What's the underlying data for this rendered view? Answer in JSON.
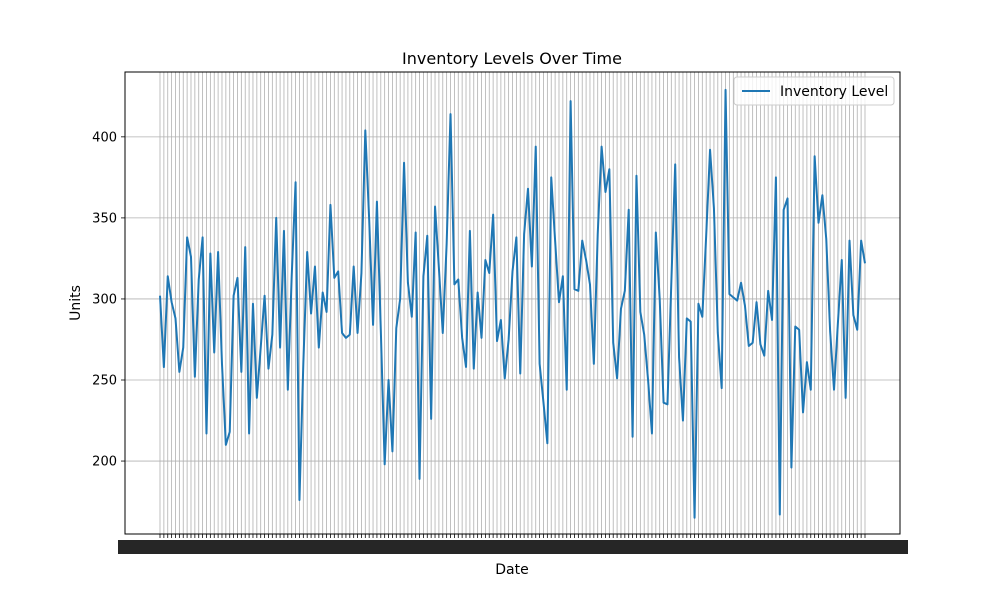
{
  "chart_data": {
    "type": "line",
    "title": "Inventory Levels Over Time",
    "xlabel": "Date",
    "ylabel": "Units",
    "ylim": [
      155,
      440
    ],
    "yticks": [
      200,
      250,
      300,
      350,
      400
    ],
    "grid": true,
    "legend_position": "top-right",
    "x_tick_labels_unreadable": true,
    "series": [
      {
        "name": "Inventory Level",
        "color": "#1f77b4",
        "values": [
          302,
          258,
          314,
          298,
          288,
          255,
          270,
          338,
          326,
          252,
          312,
          338,
          217,
          328,
          267,
          329,
          260,
          210,
          218,
          302,
          313,
          255,
          332,
          217,
          297,
          239,
          270,
          302,
          257,
          278,
          350,
          270,
          342,
          244,
          314,
          372,
          176,
          260,
          329,
          291,
          320,
          270,
          304,
          292,
          358,
          313,
          317,
          279,
          276,
          278,
          320,
          279,
          316,
          404,
          349,
          284,
          360,
          281,
          198,
          250,
          206,
          282,
          300,
          384,
          310,
          289,
          341,
          189,
          314,
          339,
          226,
          357,
          319,
          279,
          334,
          414,
          309,
          312,
          276,
          258,
          342,
          257,
          304,
          276,
          324,
          316,
          352,
          274,
          287,
          251,
          275,
          317,
          338,
          254,
          340,
          368,
          320,
          394,
          260,
          236,
          211,
          375,
          336,
          298,
          314,
          244,
          422,
          306,
          305,
          336,
          324,
          309,
          260,
          340,
          394,
          366,
          380,
          273,
          251,
          294,
          305,
          355,
          215,
          376,
          292,
          278,
          250,
          217,
          341,
          300,
          236,
          235,
          310,
          383,
          264,
          225,
          288,
          286,
          165,
          297,
          289,
          339,
          392,
          356,
          279,
          245,
          429,
          303,
          301,
          299,
          310,
          296,
          271,
          273,
          298,
          272,
          265,
          305,
          287,
          375,
          167,
          355,
          362,
          196,
          283,
          281,
          230,
          261,
          244,
          388,
          347,
          364,
          337,
          280,
          244,
          285,
          324,
          239,
          336,
          290,
          281,
          336,
          322
        ]
      }
    ]
  }
}
